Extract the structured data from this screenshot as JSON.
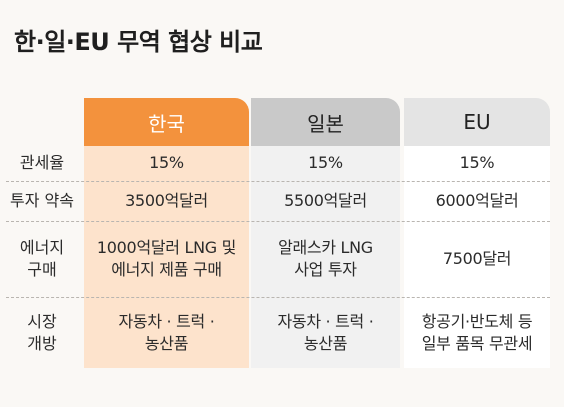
{
  "title": "한·일·EU 무역 협상 비교",
  "colors": {
    "korea_header": "#f3923d",
    "korea_body": "#fde3cc",
    "japan_header": "#c9c9c9",
    "japan_body": "#f1f1f1",
    "eu_header": "#e4e4e4",
    "eu_body": "#ffffff"
  },
  "columns": [
    "한국",
    "일본",
    "EU"
  ],
  "rows": [
    {
      "label": "관세율",
      "values": [
        "15%",
        "15%",
        "15%"
      ]
    },
    {
      "label": "투자 약속",
      "values": [
        "3500억달러",
        "5500억달러",
        "6000억달러"
      ]
    },
    {
      "label": "에너지\n구매",
      "values": [
        "1000억달러 LNG 및\n에너지 제품 구매",
        "알래스카 LNG\n사업 투자",
        "7500달러"
      ]
    },
    {
      "label": "시장\n개방",
      "values": [
        "자동차 · 트럭 ·\n농산품",
        "자동차 · 트럭 ·\n농산품",
        "항공기·반도체 등\n일부 품목 무관세"
      ]
    }
  ]
}
